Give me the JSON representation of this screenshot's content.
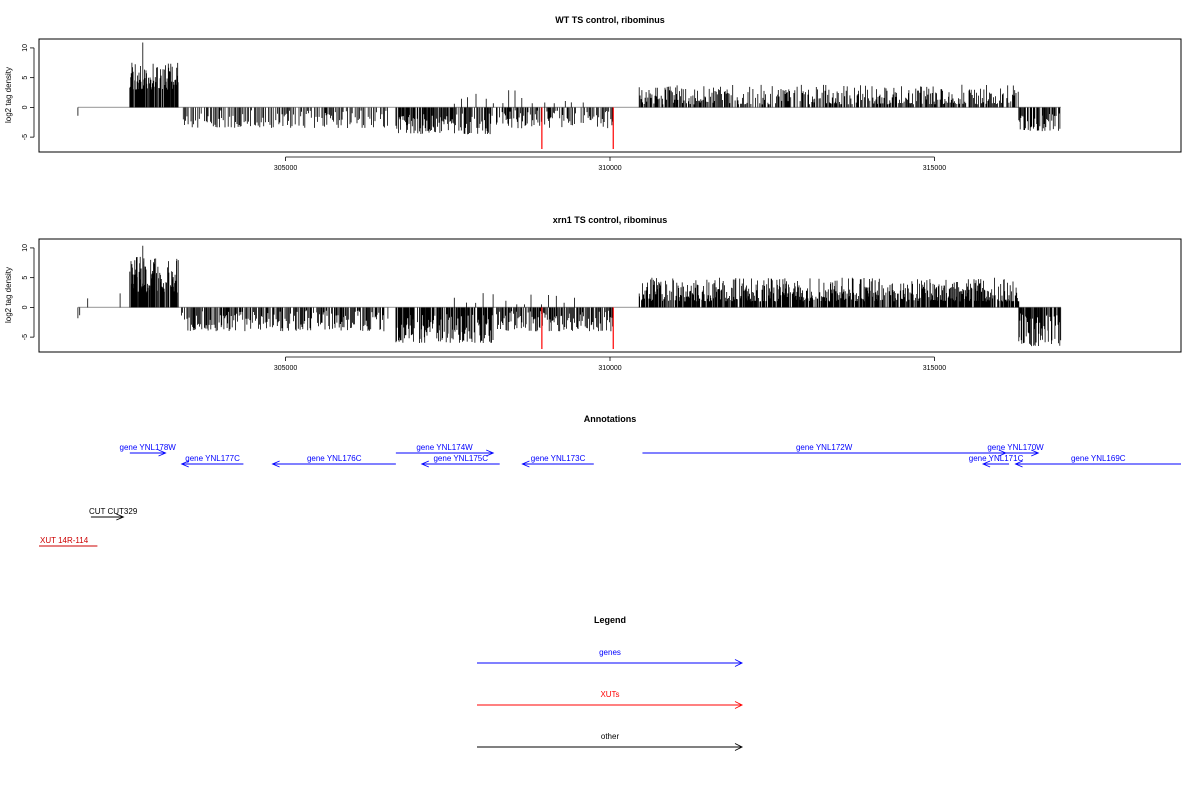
{
  "chart_data": [
    {
      "type": "bar",
      "title": "WT TS control, ribominus",
      "ylabel": "log2 tag density",
      "xlim": [
        301200,
        318800
      ],
      "ylim": [
        -7.5,
        11.5
      ],
      "yticks": [
        -5,
        0,
        5,
        10
      ],
      "yticklabels": [
        "-5",
        "0",
        "5",
        "10"
      ],
      "xticks": [
        305000,
        310000,
        315000
      ],
      "xticklabels": [
        "305000",
        "310000",
        "315000"
      ],
      "baseline": {
        "from": 301800,
        "to": 316950,
        "color": "#aaaaaa"
      },
      "bar_color": "#000000",
      "highlight_color": "#ff0000",
      "highlights": [
        {
          "x": 308950,
          "y": -7
        },
        {
          "x": 310050,
          "y": -7
        }
      ],
      "regions": [
        {
          "from": 301800,
          "to": 301830,
          "min": -1.5,
          "max": -1,
          "step": 40,
          "seed": 1
        },
        {
          "from": 302600,
          "to": 303350,
          "min": 3,
          "max": 7.5,
          "step": 8,
          "seed": 2
        },
        {
          "from": 302800,
          "to": 302820,
          "min": 10,
          "max": 11,
          "step": 40,
          "seed": 3
        },
        {
          "from": 303400,
          "to": 306600,
          "min": -3.5,
          "max": -0.5,
          "step": 20,
          "seed": 4
        },
        {
          "from": 306700,
          "to": 308200,
          "min": -4.5,
          "max": -1,
          "step": 12,
          "seed": 5
        },
        {
          "from": 308250,
          "to": 310050,
          "min": -3.5,
          "max": -0.5,
          "step": 16,
          "seed": 6
        },
        {
          "from": 307600,
          "to": 309600,
          "min": 0.5,
          "max": 3,
          "step": 140,
          "seed": 7
        },
        {
          "from": 310450,
          "to": 316300,
          "min": 0.5,
          "max": 3.8,
          "step": 14,
          "seed": 8
        },
        {
          "from": 316300,
          "to": 316950,
          "min": -4,
          "max": -1,
          "step": 12,
          "seed": 9
        }
      ]
    },
    {
      "type": "bar",
      "title": "xrn1 TS control, ribominus",
      "ylabel": "log2 tag density",
      "xlim": [
        301200,
        318800
      ],
      "ylim": [
        -7.5,
        11.5
      ],
      "yticks": [
        -5,
        0,
        5,
        10
      ],
      "yticklabels": [
        "-5",
        "0",
        "5",
        "10"
      ],
      "xticks": [
        305000,
        310000,
        315000
      ],
      "xticklabels": [
        "305000",
        "310000",
        "315000"
      ],
      "baseline": {
        "from": 301800,
        "to": 316950,
        "color": "#aaaaaa"
      },
      "bar_color": "#000000",
      "highlight_color": "#ff0000",
      "highlights": [
        {
          "x": 308950,
          "y": -7
        },
        {
          "x": 310050,
          "y": -7
        }
      ],
      "regions": [
        {
          "from": 301800,
          "to": 301830,
          "min": -2,
          "max": -1,
          "step": 40,
          "seed": 11
        },
        {
          "from": 301950,
          "to": 301980,
          "min": 1.5,
          "max": 2,
          "step": 40,
          "seed": 12
        },
        {
          "from": 302450,
          "to": 302480,
          "min": 1.5,
          "max": 2.5,
          "step": 40,
          "seed": 13
        },
        {
          "from": 302600,
          "to": 303350,
          "min": 2.5,
          "max": 8.5,
          "step": 7,
          "seed": 14
        },
        {
          "from": 302800,
          "to": 302820,
          "min": 10,
          "max": 11,
          "step": 40,
          "seed": 15
        },
        {
          "from": 303350,
          "to": 306600,
          "min": -4,
          "max": -0.5,
          "step": 14,
          "seed": 16
        },
        {
          "from": 306700,
          "to": 308200,
          "min": -6,
          "max": -1,
          "step": 10,
          "seed": 17
        },
        {
          "from": 308250,
          "to": 310050,
          "min": -4,
          "max": -0.5,
          "step": 14,
          "seed": 18
        },
        {
          "from": 307600,
          "to": 309600,
          "min": 0.5,
          "max": 2.5,
          "step": 150,
          "seed": 19
        },
        {
          "from": 310450,
          "to": 316300,
          "min": 1,
          "max": 5,
          "step": 9,
          "seed": 20
        },
        {
          "from": 316300,
          "to": 316950,
          "min": -6.5,
          "max": -1,
          "step": 10,
          "seed": 21
        }
      ]
    }
  ],
  "annotations": {
    "title": "Annotations",
    "xlim": [
      301200,
      318800
    ],
    "genes": [
      {
        "label": "gene YNL178W",
        "from": 302600,
        "to": 303150,
        "strand": "+",
        "row": 0,
        "color": "#0000ff"
      },
      {
        "label": "gene YNL177C",
        "from": 303400,
        "to": 304350,
        "strand": "-",
        "row": 1,
        "color": "#0000ff"
      },
      {
        "label": "gene YNL176C",
        "from": 304800,
        "to": 306700,
        "strand": "-",
        "row": 1,
        "color": "#0000ff"
      },
      {
        "label": "gene YNL174W",
        "from": 306700,
        "to": 308200,
        "strand": "+",
        "row": 0,
        "color": "#0000ff"
      },
      {
        "label": "gene YNL175C",
        "from": 307100,
        "to": 308300,
        "strand": "-",
        "row": 1,
        "color": "#0000ff"
      },
      {
        "label": "gene YNL173C",
        "from": 308650,
        "to": 309750,
        "strand": "-",
        "row": 1,
        "color": "#0000ff"
      },
      {
        "label": "gene YNL172W",
        "from": 310500,
        "to": 316100,
        "strand": "+",
        "row": 0,
        "color": "#0000ff"
      },
      {
        "label": "gene YNL170W",
        "from": 315900,
        "to": 316600,
        "strand": "+",
        "row": 0,
        "color": "#0000ff"
      },
      {
        "label": "gene YNL171C",
        "from": 315750,
        "to": 316150,
        "strand": "-",
        "row": 1,
        "color": "#0000ff"
      },
      {
        "label": "gene YNL169C",
        "from": 316250,
        "to": 318800,
        "strand": "-",
        "row": 1,
        "color": "#0000ff"
      }
    ],
    "other": [
      {
        "label": "CUT CUT329",
        "from": 302000,
        "to": 302500,
        "strand": "+",
        "color": "#000000"
      },
      {
        "label": "XUT 14R-114",
        "from": 301200,
        "to": 302100,
        "strand": "none",
        "color": "#cc0000"
      }
    ]
  },
  "legend": {
    "title": "Legend",
    "items": [
      {
        "label": "genes",
        "color": "#0000ff"
      },
      {
        "label": "XUTs",
        "color": "#ff0000"
      },
      {
        "label": "other",
        "color": "#000000"
      }
    ]
  }
}
